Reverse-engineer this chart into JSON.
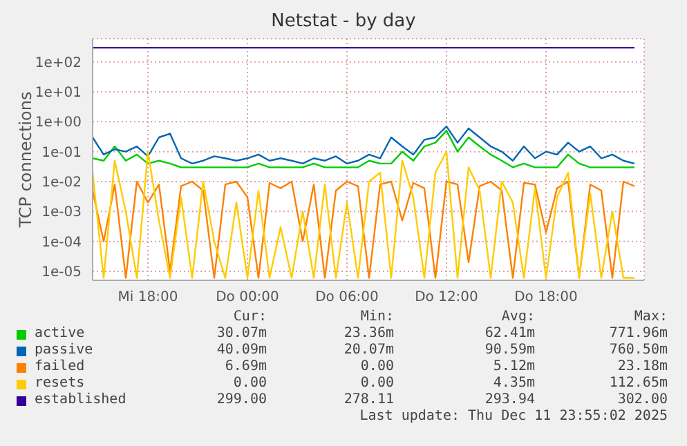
{
  "chart_data": {
    "type": "line",
    "title": "Netstat - by day",
    "ylabel": "TCP connections",
    "log": "y",
    "grid": true,
    "legend": "bottom",
    "marker": "none",
    "line_style": "solid",
    "x": [
      "2025-12-10T14:40",
      "2025-12-10T15:20",
      "2025-12-10T16:00",
      "2025-12-10T16:40",
      "2025-12-10T17:20",
      "2025-12-10T18:00",
      "2025-12-10T18:40",
      "2025-12-10T19:20",
      "2025-12-10T20:00",
      "2025-12-10T20:40",
      "2025-12-10T21:20",
      "2025-12-10T22:00",
      "2025-12-10T22:40",
      "2025-12-10T23:20",
      "2025-12-11T00:00",
      "2025-12-11T00:40",
      "2025-12-11T01:20",
      "2025-12-11T02:00",
      "2025-12-11T02:40",
      "2025-12-11T03:20",
      "2025-12-11T04:00",
      "2025-12-11T04:40",
      "2025-12-11T05:20",
      "2025-12-11T06:00",
      "2025-12-11T06:40",
      "2025-12-11T07:20",
      "2025-12-11T08:00",
      "2025-12-11T08:40",
      "2025-12-11T09:20",
      "2025-12-11T10:00",
      "2025-12-11T10:40",
      "2025-12-11T11:20",
      "2025-12-11T12:00",
      "2025-12-11T12:40",
      "2025-12-11T13:20",
      "2025-12-11T14:00",
      "2025-12-11T14:40",
      "2025-12-11T15:20",
      "2025-12-11T16:00",
      "2025-12-11T16:40",
      "2025-12-11T17:20",
      "2025-12-11T18:00",
      "2025-12-11T18:40",
      "2025-12-11T19:20",
      "2025-12-11T20:00",
      "2025-12-11T20:40",
      "2025-12-11T21:20",
      "2025-12-11T22:00",
      "2025-12-11T22:40",
      "2025-12-11T23:20"
    ],
    "xlim": [
      "2025-12-10T14:40",
      "2025-12-11T23:55"
    ],
    "xticks": [
      {
        "value": "2025-12-10T18:00",
        "label": "Mi 18:00"
      },
      {
        "value": "2025-12-11T00:00",
        "label": "Do 00:00"
      },
      {
        "value": "2025-12-11T06:00",
        "label": "Do 06:00"
      },
      {
        "value": "2025-12-11T12:00",
        "label": "Do 12:00"
      },
      {
        "value": "2025-12-11T18:00",
        "label": "Do 18:00"
      }
    ],
    "ylim": [
      5e-06,
      600
    ],
    "yticks": [
      {
        "value": 1e-05,
        "label": "1e-05"
      },
      {
        "value": 0.0001,
        "label": "1e-04"
      },
      {
        "value": 0.001,
        "label": "1e-03"
      },
      {
        "value": 0.01,
        "label": "1e-02"
      },
      {
        "value": 0.1,
        "label": "1e-01"
      },
      {
        "value": 1,
        "label": "1e+00"
      },
      {
        "value": 10,
        "label": "1e+01"
      },
      {
        "value": 100,
        "label": "1e+02"
      }
    ],
    "series": [
      {
        "name": "active",
        "color": "#00cc00",
        "values": [
          0.06,
          0.05,
          0.15,
          0.05,
          0.08,
          0.04,
          0.05,
          0.04,
          0.03,
          0.03,
          0.03,
          0.03,
          0.03,
          0.03,
          0.03,
          0.04,
          0.03,
          0.03,
          0.03,
          0.03,
          0.04,
          0.03,
          0.03,
          0.03,
          0.03,
          0.05,
          0.04,
          0.04,
          0.1,
          0.05,
          0.15,
          0.2,
          0.5,
          0.1,
          0.3,
          0.15,
          0.08,
          0.05,
          0.03,
          0.04,
          0.03,
          0.03,
          0.03,
          0.08,
          0.04,
          0.03,
          0.03,
          0.03,
          0.03,
          0.03
        ]
      },
      {
        "name": "passive",
        "color": "#0066b3",
        "values": [
          0.3,
          0.08,
          0.12,
          0.1,
          0.15,
          0.07,
          0.3,
          0.4,
          0.06,
          0.04,
          0.05,
          0.07,
          0.06,
          0.05,
          0.06,
          0.08,
          0.05,
          0.06,
          0.05,
          0.04,
          0.06,
          0.05,
          0.07,
          0.04,
          0.05,
          0.08,
          0.06,
          0.3,
          0.15,
          0.08,
          0.25,
          0.3,
          0.7,
          0.2,
          0.6,
          0.3,
          0.15,
          0.1,
          0.05,
          0.15,
          0.06,
          0.1,
          0.08,
          0.2,
          0.1,
          0.15,
          0.06,
          0.08,
          0.05,
          0.04
        ]
      },
      {
        "name": "failed",
        "color": "#ff8000",
        "values": [
          0.005,
          0.0001,
          0.008,
          6e-06,
          0.01,
          0.002,
          0.008,
          1e-05,
          0.007,
          0.01,
          0.005,
          6e-06,
          0.008,
          0.01,
          0.003,
          6e-06,
          0.009,
          0.006,
          0.01,
          0.0001,
          0.008,
          6e-06,
          0.005,
          0.01,
          0.007,
          6e-06,
          0.008,
          0.01,
          0.0005,
          0.009,
          0.006,
          6e-06,
          0.01,
          0.008,
          2e-05,
          0.007,
          0.01,
          0.005,
          6e-06,
          0.009,
          0.008,
          0.0002,
          0.006,
          0.01,
          6e-06,
          0.008,
          0.005,
          6e-06,
          0.01,
          0.007
        ]
      },
      {
        "name": "resets",
        "color": "#ffcc00",
        "values": [
          0.02,
          6e-06,
          0.05,
          0.001,
          6e-06,
          0.1,
          0.0005,
          6e-06,
          0.003,
          6e-06,
          0.01,
          0.0001,
          6e-06,
          0.002,
          6e-06,
          0.005,
          6e-06,
          0.0003,
          6e-06,
          0.001,
          6e-06,
          0.008,
          6e-06,
          0.002,
          6e-06,
          0.01,
          0.02,
          6e-06,
          0.05,
          0.003,
          6e-06,
          0.02,
          0.1,
          6e-06,
          0.03,
          0.005,
          6e-06,
          0.01,
          0.002,
          6e-06,
          0.006,
          6e-06,
          0.003,
          0.02,
          6e-06,
          0.004,
          6e-06,
          0.001,
          6e-06,
          6e-06
        ]
      },
      {
        "name": "established",
        "color": "#330099",
        "values": [
          299,
          299,
          299,
          299,
          299,
          299,
          299,
          299,
          299,
          299,
          299,
          299,
          299,
          299,
          299,
          299,
          299,
          299,
          299,
          299,
          299,
          299,
          299,
          299,
          299,
          299,
          299,
          299,
          299,
          299,
          299,
          299,
          299,
          299,
          299,
          299,
          299,
          299,
          299,
          299,
          299,
          299,
          299,
          299,
          299,
          299,
          299,
          299,
          299,
          299
        ]
      }
    ],
    "annotations": [
      "Cur:",
      "Min:",
      "Avg:",
      "Max:",
      "30.07m",
      "23.36m",
      "62.41m",
      "771.96m",
      "40.09m",
      "20.07m",
      "90.59m",
      "760.50m",
      "6.69m",
      "0.00",
      "5.12m",
      "23.18m",
      "0.00",
      "0.00",
      "4.35m",
      "112.65m",
      "299.00",
      "278.11",
      "293.94",
      "302.00",
      "Last update: Thu Dec 11 23:55:02 2025"
    ]
  }
}
